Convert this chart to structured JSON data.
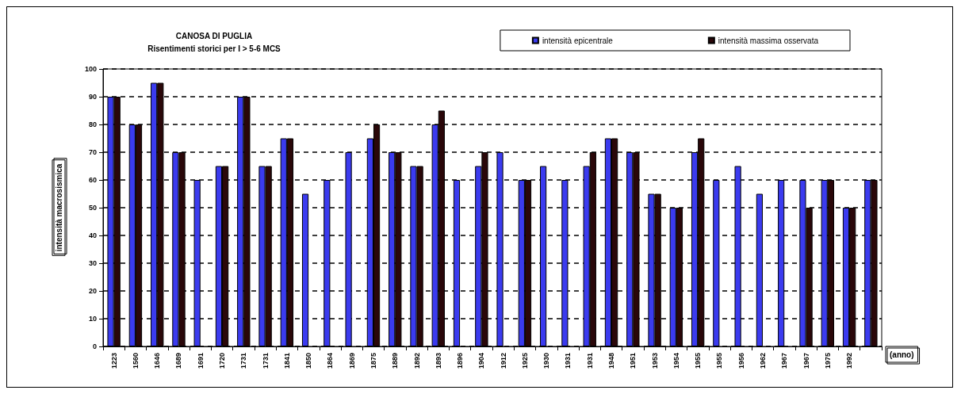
{
  "chart_data": {
    "type": "bar",
    "title": "CANOSA DI PUGLIA",
    "subtitle": "Risentimenti storici per I > 5-6 MCS",
    "xlabel": "(anno)",
    "ylabel": "intensità macrosismica",
    "categories": [
      "1223",
      "1560",
      "1646",
      "1689",
      "1691",
      "1720",
      "1731",
      "1731",
      "1841",
      "1850",
      "1864",
      "1869",
      "1875",
      "1889",
      "1892",
      "1893",
      "1896",
      "1904",
      "1912",
      "1925",
      "1930",
      "1931",
      "1931",
      "1948",
      "1951",
      "1953",
      "1954",
      "1955",
      "1955",
      "1956",
      "1962",
      "1967",
      "1967",
      "1975",
      "1992",
      null
    ],
    "series": [
      {
        "name": "intensità epicentrale",
        "color": "#3b3bef",
        "values": [
          90,
          80,
          95,
          70,
          60,
          65,
          90,
          65,
          75,
          55,
          60,
          70,
          75,
          70,
          65,
          80,
          60,
          65,
          70,
          60,
          65,
          60,
          65,
          75,
          70,
          55,
          50,
          70,
          60,
          65,
          55,
          60,
          60,
          60,
          50,
          60
        ]
      },
      {
        "name": "intensità massima osservata",
        "color": "#2a0709",
        "values": [
          90,
          80,
          95,
          70,
          null,
          65,
          90,
          65,
          75,
          null,
          null,
          null,
          80,
          70,
          65,
          85,
          null,
          70,
          null,
          60,
          null,
          null,
          70,
          75,
          70,
          55,
          50,
          75,
          null,
          null,
          null,
          null,
          50,
          60,
          50,
          60
        ]
      }
    ],
    "ylim": [
      0,
      100
    ],
    "yticks": [
      0,
      10,
      20,
      30,
      40,
      50,
      60,
      70,
      80,
      90,
      100
    ],
    "grid": "y",
    "legend": "top right"
  }
}
